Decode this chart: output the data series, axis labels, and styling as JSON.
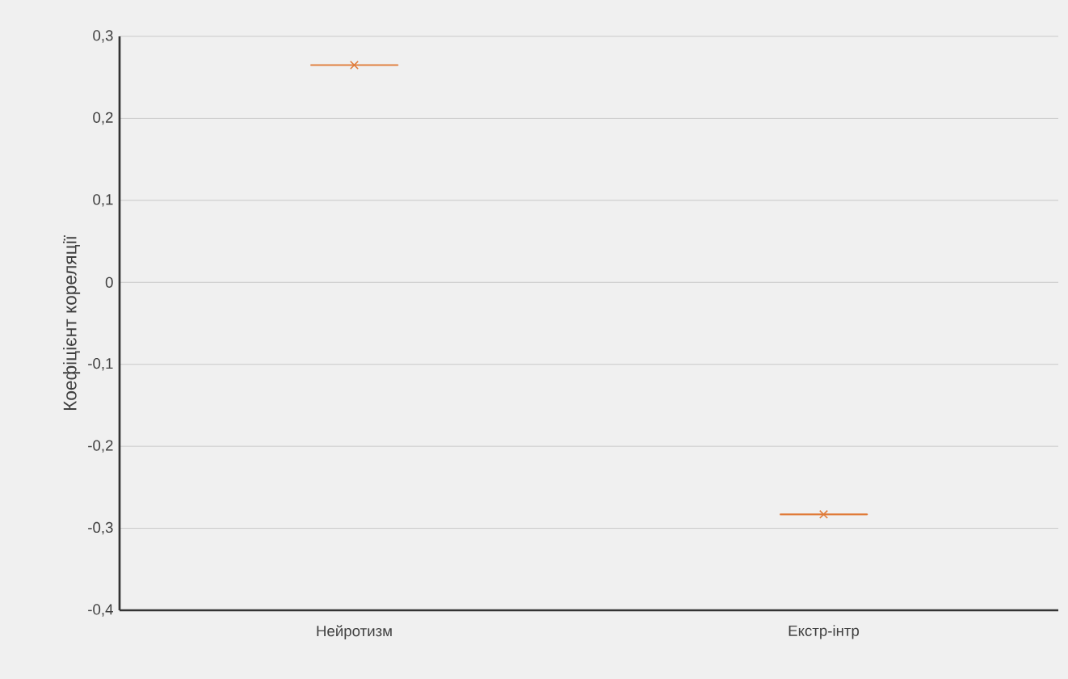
{
  "chart_data": {
    "type": "box",
    "ylabel": "Коефіцієнт кореляції",
    "categories": [
      "Нейротизм",
      "Екстр-інтр"
    ],
    "series": [
      {
        "color": "#e07b39",
        "boxes": [
          {
            "low": 0.265,
            "q1": 0.265,
            "median": 0.265,
            "q3": 0.265,
            "high": 0.265,
            "mean": 0.265
          },
          {
            "low": -0.283,
            "q1": -0.283,
            "median": -0.283,
            "q3": -0.283,
            "high": -0.283,
            "mean": -0.283
          }
        ]
      }
    ],
    "marker": "cross",
    "ylim": [
      -0.4,
      0.3
    ],
    "yticks": [
      {
        "value": -0.4,
        "label": "-0,4"
      },
      {
        "value": -0.3,
        "label": "-0,3"
      },
      {
        "value": -0.2,
        "label": "-0,2"
      },
      {
        "value": -0.1,
        "label": "-0,1"
      },
      {
        "value": 0,
        "label": "0"
      },
      {
        "value": 0.1,
        "label": "0,1"
      },
      {
        "value": 0.2,
        "label": "0,2"
      },
      {
        "value": 0.3,
        "label": "0,3"
      }
    ],
    "grid": "y"
  }
}
